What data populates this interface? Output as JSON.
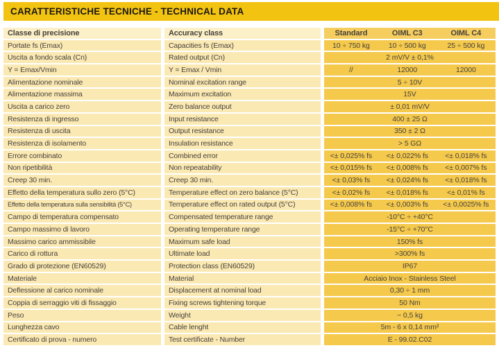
{
  "title_bar": {
    "label": "CARATTERISTICHE TECNICHE - TECHNICAL DATA"
  },
  "colors": {
    "title_gold": "#F3C312",
    "value_gold": "#F5C94C",
    "header_gold": "#F6CE5F",
    "cream": "#FBE9B4",
    "header_cream": "#FCF0C8",
    "text": "#46413A",
    "title_text": "#1B170E"
  },
  "table": {
    "header": {
      "it": "Classe di precisione",
      "en": "Accuracy class",
      "cols": [
        "Standard",
        "OIML C3",
        "OIML C4"
      ]
    },
    "rows": [
      {
        "it": "Portate fs (Emax)",
        "en": "Capacities fs (Emax)",
        "values": [
          "10 ÷ 750 kg",
          "10 ÷ 500 kg",
          "25 ÷ 500 kg"
        ]
      },
      {
        "it": "Uscita a fondo scala (Cn)",
        "en": "Rated output (Cn)",
        "span": "2 mV/V ± 0,1%"
      },
      {
        "it": "Y = Emax/Vmin",
        "en": "Y = Emax / Vmin",
        "values": [
          "//",
          "12000",
          "12000"
        ]
      },
      {
        "it": "Alimentazione nominale",
        "en": "Nominal excitation range",
        "span": "5 ÷ 10V"
      },
      {
        "it": "Alimentazione massima",
        "en": "Maximum excitation",
        "span": "15V"
      },
      {
        "it": "Uscita a carico zero",
        "en": "Zero balance output",
        "span": "± 0,01 mV/V"
      },
      {
        "it": "Resistenza di ingresso",
        "en": "Input resistance",
        "span": "400 ± 25 Ω"
      },
      {
        "it": "Resistenza di uscita",
        "en": "Output resistance",
        "span": "350 ± 2 Ω"
      },
      {
        "it": "Resistenza di isolamento",
        "en": "Insulation resistance",
        "span": "> 5 GΩ"
      },
      {
        "it": "Errore combinato",
        "en": "Combined error",
        "values": [
          "<± 0,025% fs",
          "<± 0,022% fs",
          "<± 0,018% fs"
        ]
      },
      {
        "it": "Non ripetibilità",
        "en": "Non repeatability",
        "values": [
          "<± 0,015% fs",
          "<± 0,008% fs",
          "<± 0,007% fs"
        ]
      },
      {
        "it": "Creep 30 min.",
        "en": "Creep 30 min.",
        "values": [
          "<± 0,03% fs",
          "<± 0,024% fs",
          "<± 0,018% fs"
        ]
      },
      {
        "it": "Effetto della temperatura sullo zero (5°C)",
        "en": "Temperature effect on zero balance (5°C)",
        "values": [
          "<± 0,02% fs",
          "<± 0,018% fs",
          "<± 0,01% fs"
        ]
      },
      {
        "it": "Effetto della temperatura sulla sensibilità (5°C)",
        "en": "Temperature effect on rated output (5°C)",
        "values": [
          "<± 0,008% fs",
          "<± 0,003% fs",
          "<± 0,0025% fs"
        ]
      },
      {
        "it": "Campo di temperatura compensato",
        "en": "Compensated temperature range",
        "span": "-10°C ÷ +40°C"
      },
      {
        "it": "Campo massimo di lavoro",
        "en": "Operating temperature range",
        "span": "-15°C ÷ +70°C"
      },
      {
        "it": "Massimo carico ammissibile",
        "en": "Maximum safe load",
        "span": "150% fs"
      },
      {
        "it": "Carico di rottura",
        "en": "Ultimate load",
        "span": ">300% fs"
      },
      {
        "it": "Grado di protezione (EN60529)",
        "en": "Protection class (EN60529)",
        "span": "IP67"
      },
      {
        "it": "Materiale",
        "en": "Material",
        "span": "Acciaio Inox - Stainless Steel"
      },
      {
        "it": "Deflessione al carico nominale",
        "en": "Displacement at nominal load",
        "span": "0,30 ÷ 1 mm"
      },
      {
        "it": "Coppia di serraggio viti di fissaggio",
        "en": "Fixing screws tightening torque",
        "span": "50 Nm"
      },
      {
        "it": "Peso",
        "en": "Weight",
        "span": "~ 0,5 kg"
      },
      {
        "it": "Lunghezza cavo",
        "en": "Cable lenght",
        "span": "5m - 6 x 0,14 mm²"
      },
      {
        "it": "Certificato di prova - numero",
        "en": "Test certificate - Number",
        "span": "E - 99.02.C02"
      }
    ]
  }
}
